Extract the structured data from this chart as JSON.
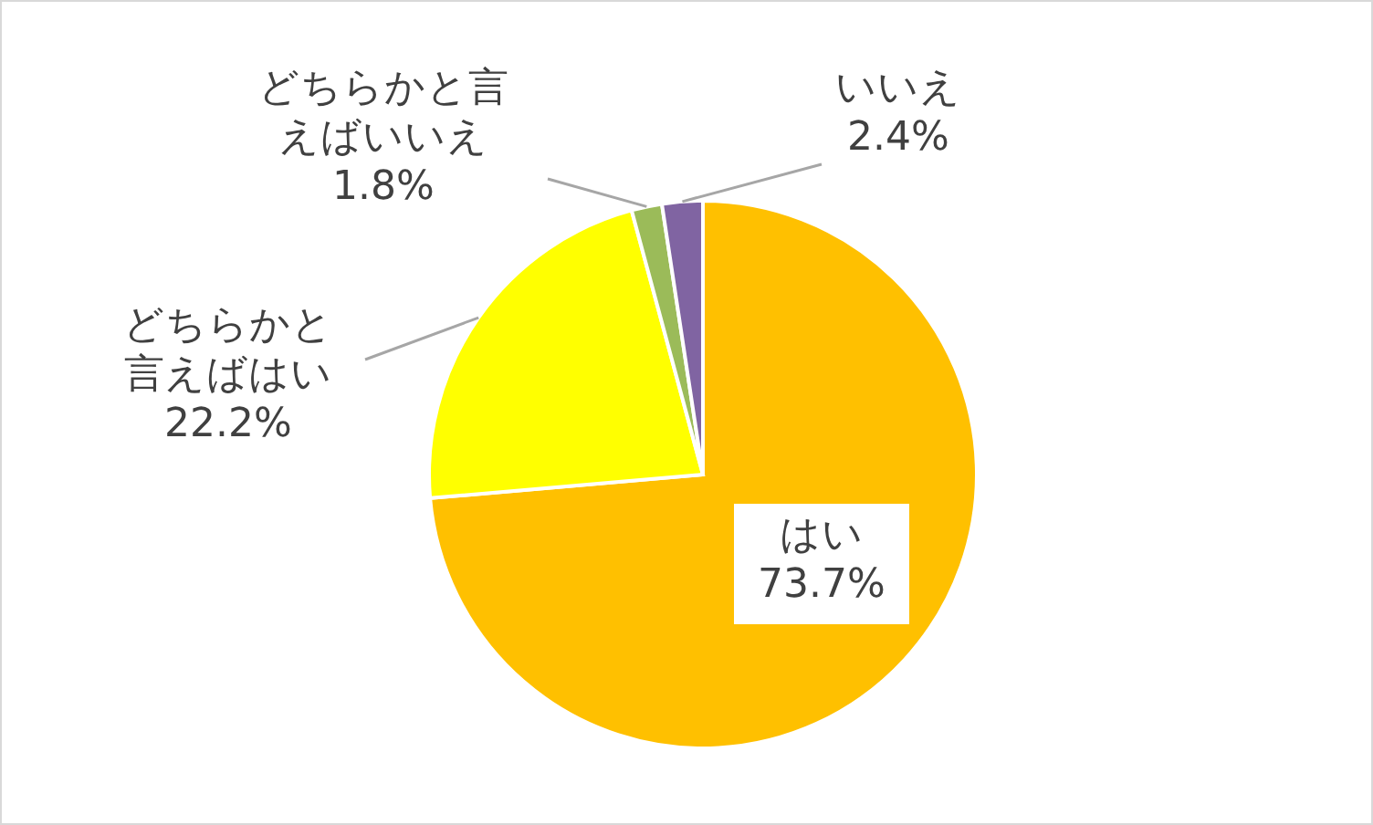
{
  "chart_data": {
    "type": "pie",
    "categories": [
      "はい",
      "どちらかと言えばはい",
      "どちらかと言えばいいえ",
      "いいえ"
    ],
    "values": [
      73.7,
      22.2,
      1.8,
      2.4
    ],
    "value_labels": [
      "73.7%",
      "22.2%",
      "1.8%",
      "2.4%"
    ],
    "colors": [
      "#ffc000",
      "#ffff00",
      "#9bbb59",
      "#8064a2"
    ]
  }
}
